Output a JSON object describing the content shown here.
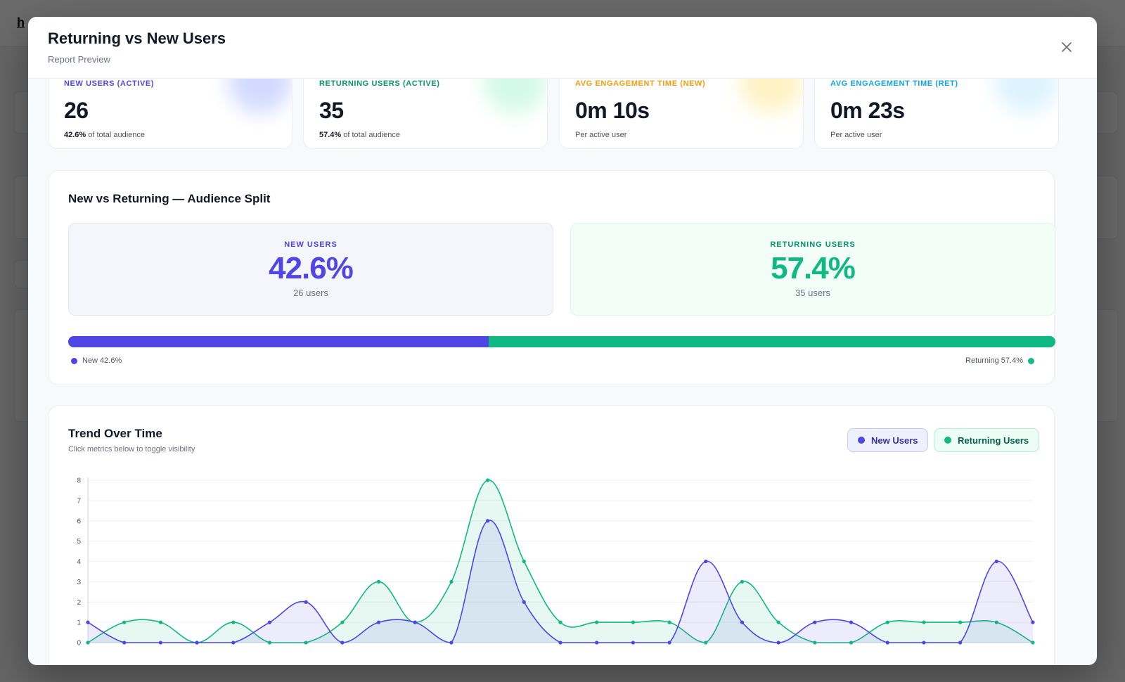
{
  "background": {
    "logo": "h"
  },
  "modal": {
    "title": "Returning vs New Users",
    "subtitle": "Report Preview",
    "close_icon": "close-icon"
  },
  "colors": {
    "new": "#4f46e5",
    "returning": "#10b981",
    "new_time": "#f59e0b",
    "ret_time": "#0ea5e9"
  },
  "kpis": [
    {
      "label": "NEW USERS (ACTIVE)",
      "value": "26",
      "sub_bold": "42.6%",
      "sub": " of total audience",
      "color": "#4f46e5",
      "glow": "#a5b4fc"
    },
    {
      "label": "RETURNING USERS (ACTIVE)",
      "value": "35",
      "sub_bold": "57.4%",
      "sub": " of total audience",
      "color": "#059669",
      "glow": "#a7f3d0"
    },
    {
      "label": "AVG ENGAGEMENT TIME (NEW)",
      "value": "0m 10s",
      "sub_bold": "",
      "sub": "Per active user",
      "color": "#f59e0b",
      "glow": "#fde68a"
    },
    {
      "label": "AVG ENGAGEMENT TIME (RET)",
      "value": "0m 23s",
      "sub_bold": "",
      "sub": "Per active user",
      "color": "#0ea5e9",
      "glow": "#bae6fd"
    }
  ],
  "split": {
    "title": "New vs Returning — Audience Split",
    "new": {
      "label": "NEW USERS",
      "value": "42.6%",
      "count": "26 users",
      "fraction": 0.426
    },
    "returning": {
      "label": "RETURNING USERS",
      "value": "57.4%",
      "count": "35 users",
      "fraction": 0.574
    },
    "legend_new": "New 42.6%",
    "legend_returning": "Returning 57.4%"
  },
  "trend": {
    "title": "Trend Over Time",
    "subtitle": "Click metrics below to toggle visibility",
    "toggle_new": "New Users",
    "toggle_returning": "Returning Users"
  },
  "chart_data": {
    "type": "line",
    "ylim": [
      0,
      8
    ],
    "y_ticks": [
      "0",
      "1",
      "2",
      "3",
      "4",
      "5",
      "6",
      "7",
      "8"
    ],
    "series": [
      {
        "name": "New Users",
        "values": [
          1,
          0,
          0,
          0,
          0,
          1,
          2,
          0,
          1,
          1,
          0,
          6,
          2,
          0,
          0,
          0,
          0,
          4,
          1,
          0,
          1,
          1,
          0,
          0,
          0,
          4,
          1
        ]
      },
      {
        "name": "Returning Users",
        "values": [
          0,
          1,
          1,
          0,
          1,
          0,
          0,
          1,
          3,
          1,
          3,
          8,
          4,
          1,
          1,
          1,
          1,
          0,
          3,
          1,
          0,
          0,
          1,
          1,
          1,
          1,
          0
        ]
      }
    ]
  }
}
